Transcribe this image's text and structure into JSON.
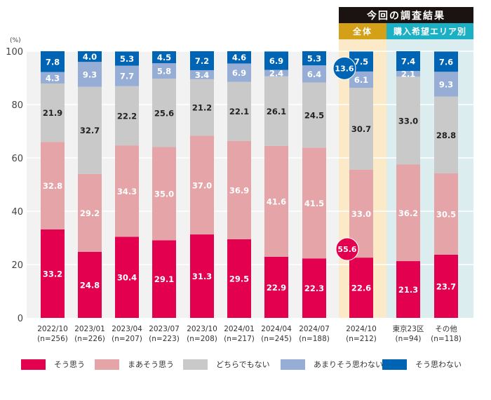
{
  "chart_data": {
    "type": "bar",
    "stacked": true,
    "orientation": "vertical",
    "unit_label": "(%)",
    "ylim": [
      0,
      100
    ],
    "yticks": [
      0,
      20,
      40,
      60,
      80,
      100
    ],
    "grid": true,
    "legend_position": "bottom",
    "header": {
      "title": "今回の調査結果",
      "groups": [
        {
          "label": "全体",
          "color": "#D4A017",
          "bg": "#FBE9C8",
          "categories": [
            "2024/10"
          ]
        },
        {
          "label": "購入希望エリア別",
          "color": "#1BB0C4",
          "bg": "#DCEDF0",
          "categories": [
            "東京23区",
            "その他"
          ]
        }
      ],
      "title_bg": "#1A1311"
    },
    "categories": [
      "2022/10",
      "2023/01",
      "2023/04",
      "2023/07",
      "2023/10",
      "2024/01",
      "2024/04",
      "2024/07",
      "2024/10",
      "東京23区",
      "その他"
    ],
    "sample_sizes": [
      "(n=256)",
      "(n=226)",
      "(n=207)",
      "(n=223)",
      "(n=208)",
      "(n=217)",
      "(n=245)",
      "(n=188)",
      "(n=212)",
      "(n=94)",
      "(n=118)"
    ],
    "series": [
      {
        "name": "そう思う",
        "color": "#E2004F",
        "label_color": "#ffffff",
        "values": [
          33.2,
          24.8,
          30.4,
          29.1,
          31.3,
          29.5,
          22.9,
          22.3,
          22.6,
          21.3,
          23.7
        ]
      },
      {
        "name": "まあそう思う",
        "color": "#E5A5A8",
        "label_color": "#ffffff",
        "values": [
          32.8,
          29.2,
          34.3,
          35.0,
          37.0,
          36.9,
          41.6,
          41.5,
          33.0,
          36.2,
          30.5
        ]
      },
      {
        "name": "どちらでもない",
        "color": "#C8C9C8",
        "label_color": "#222222",
        "values": [
          21.9,
          32.7,
          22.2,
          25.6,
          21.2,
          22.1,
          26.1,
          24.5,
          30.7,
          33.0,
          28.8
        ]
      },
      {
        "name": "あまりそう思わない",
        "color": "#96AED6",
        "label_color": "#ffffff",
        "values": [
          4.3,
          9.3,
          7.7,
          5.8,
          3.4,
          6.9,
          2.4,
          6.4,
          6.1,
          2.1,
          9.3
        ]
      },
      {
        "name": "そう思わない",
        "color": "#0064B4",
        "label_color": "#ffffff",
        "values": [
          7.8,
          4.0,
          5.3,
          4.5,
          7.2,
          4.6,
          6.9,
          5.3,
          7.5,
          7.4,
          7.6
        ]
      }
    ],
    "annotations": [
      {
        "text": "55.6",
        "category": "2024/10",
        "meaning": "そう思う + まあそう思う",
        "color": "#E2004F"
      },
      {
        "text": "13.6",
        "category": "2024/10",
        "meaning": "あまりそう思わない + そう思わない",
        "color": "#0064B4"
      }
    ],
    "plot_bg": "#F2F2F2"
  }
}
